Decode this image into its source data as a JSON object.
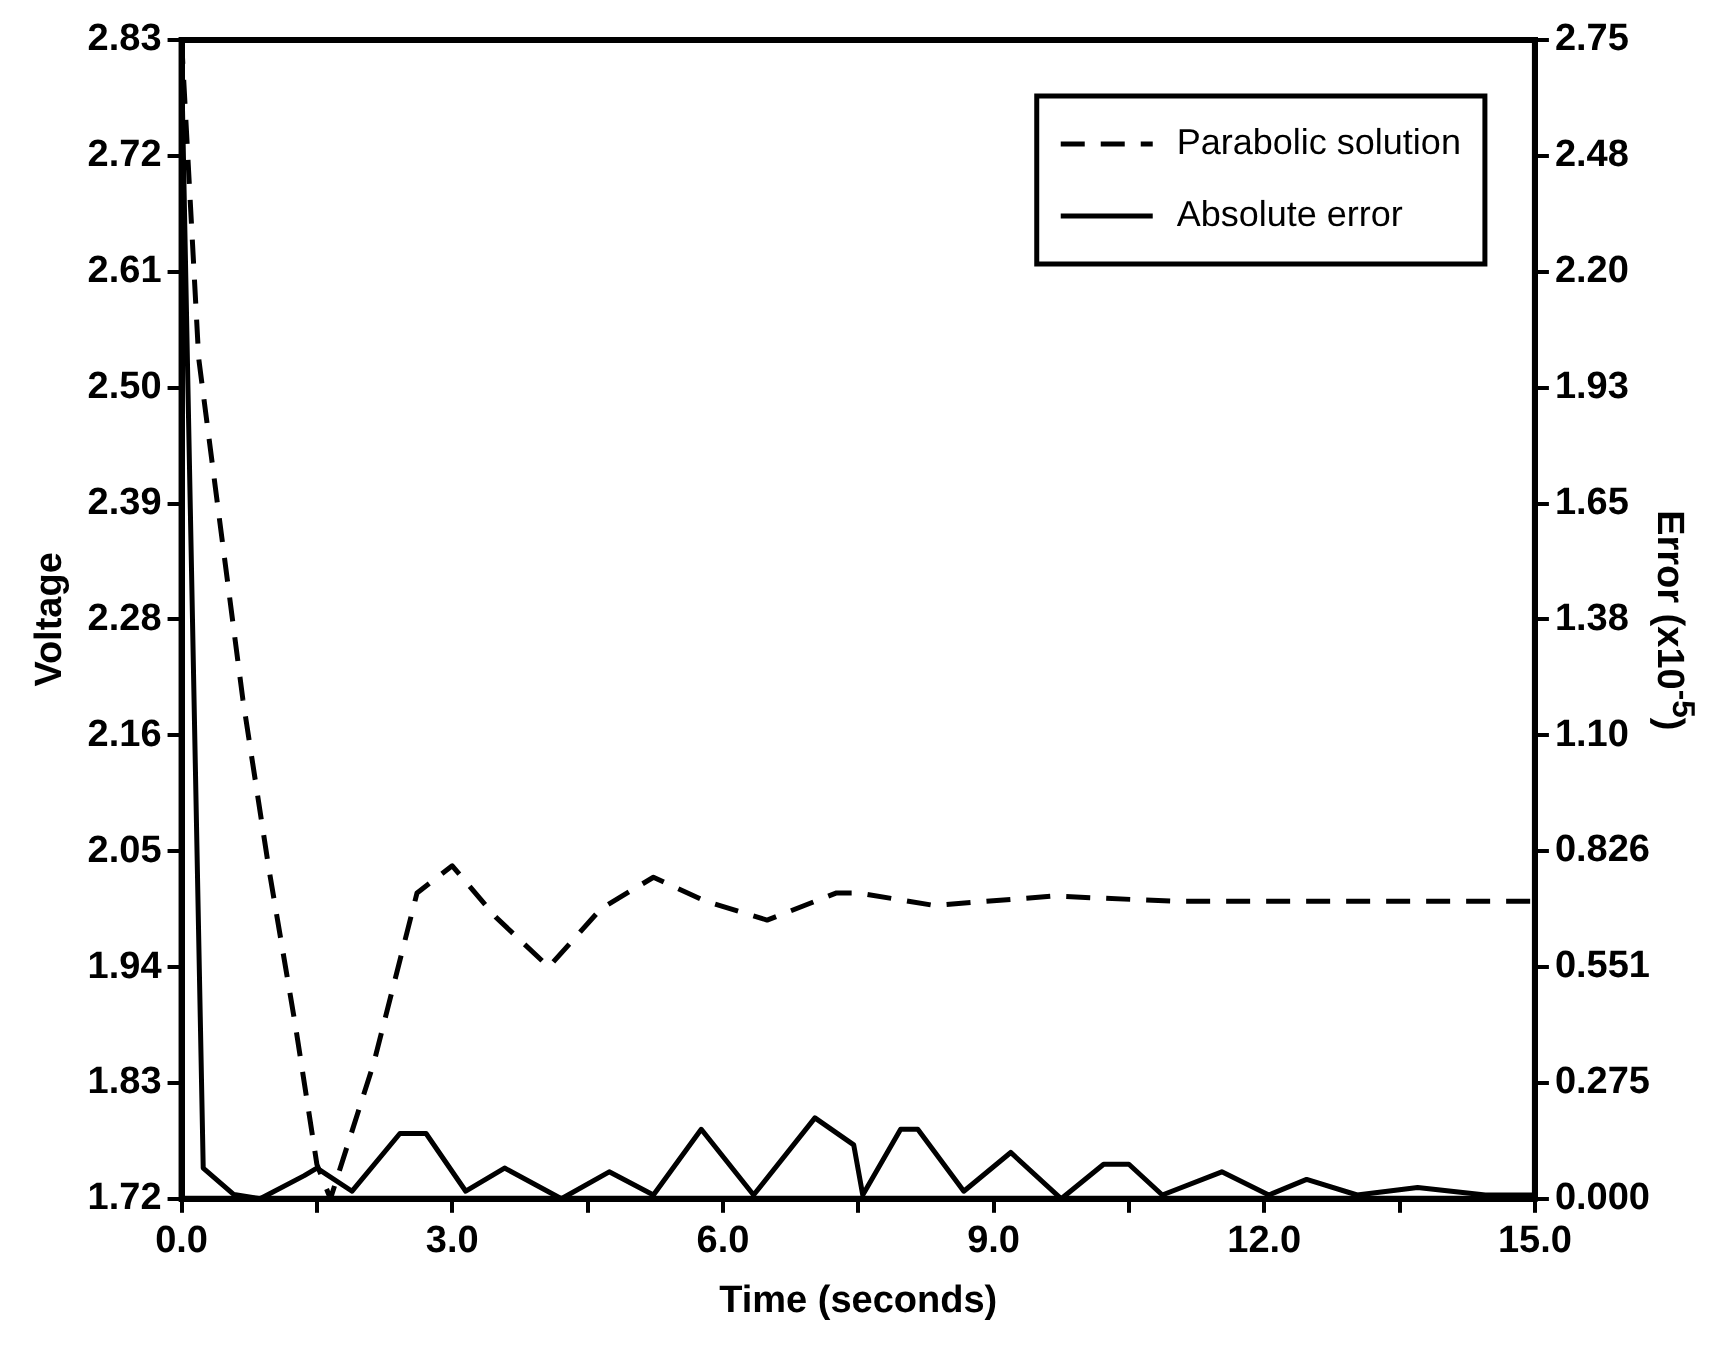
{
  "chart_data": {
    "type": "line",
    "xlabel": "Time (seconds)",
    "ylabel": "Voltage",
    "y2label": "Error (x10$^{-5}$)",
    "legend": "top right",
    "grid": false,
    "marker": "none",
    "xlim": [
      0,
      15
    ],
    "xticks": [
      {
        "value": 0,
        "label": "0.0"
      },
      {
        "value": 1.5,
        "label": null
      },
      {
        "value": 3,
        "label": "3.0"
      },
      {
        "value": 4.5,
        "label": null
      },
      {
        "value": 6,
        "label": "6.0"
      },
      {
        "value": 7.5,
        "label": null
      },
      {
        "value": 9,
        "label": "9.0"
      },
      {
        "value": 10.5,
        "label": null
      },
      {
        "value": 12,
        "label": "12.0"
      },
      {
        "value": 13.5,
        "label": null
      },
      {
        "value": 15,
        "label": "15.0"
      }
    ],
    "ylim": [
      1.72,
      2.83
    ],
    "yticks": [
      {
        "value": 1.72,
        "label": "1.72"
      },
      {
        "value": 1.831,
        "label": "1.83"
      },
      {
        "value": 1.942,
        "label": "1.94"
      },
      {
        "value": 2.053,
        "label": "2.05"
      },
      {
        "value": 2.164,
        "label": "2.16"
      },
      {
        "value": 2.275,
        "label": "2.28"
      },
      {
        "value": 2.386,
        "label": "2.39"
      },
      {
        "value": 2.497,
        "label": "2.50"
      },
      {
        "value": 2.608,
        "label": "2.61"
      },
      {
        "value": 2.719,
        "label": "2.72"
      },
      {
        "value": 2.83,
        "label": "2.83"
      }
    ],
    "y2lim": [
      0,
      2.75
    ],
    "y2ticks": [
      {
        "value": 0,
        "label": "0.000"
      },
      {
        "value": 0.275,
        "label": "0.275"
      },
      {
        "value": 0.551,
        "label": "0.551"
      },
      {
        "value": 0.826,
        "label": "0.826"
      },
      {
        "value": 1.1,
        "label": "1.10"
      },
      {
        "value": 1.375,
        "label": "1.38"
      },
      {
        "value": 1.65,
        "label": "1.65"
      },
      {
        "value": 1.925,
        "label": "1.93"
      },
      {
        "value": 2.2,
        "label": "2.20"
      },
      {
        "value": 2.475,
        "label": "2.48"
      },
      {
        "value": 2.75,
        "label": "2.75"
      }
    ],
    "series": [
      {
        "name": "Parabolic solution",
        "color": "#000000",
        "line_style": "dashed",
        "x": [
          0,
          0.19,
          0.39,
          0.68,
          0.97,
          1.26,
          1.5,
          1.65,
          2.13,
          2.61,
          3.0,
          3.48,
          4.07,
          4.65,
          5.23,
          5.81,
          6.49,
          7.26,
          7.5,
          8.34,
          9.66,
          11.0,
          12.5,
          15.0
        ],
        "values": [
          2.83,
          2.525,
          2.391,
          2.198,
          2.035,
          1.887,
          1.753,
          1.72,
          1.85,
          2.013,
          2.039,
          1.99,
          1.942,
          1.998,
          2.028,
          2.005,
          1.987,
          2.013,
          2.013,
          2.001,
          2.01,
          2.005,
          2.005,
          2.005
        ]
      },
      {
        "name": "Absolute error",
        "color": "#000000",
        "line_style": "solid",
        "axis": "y2",
        "x": [
          0,
          0.24,
          0.58,
          0.87,
          1.36,
          1.5,
          1.89,
          2.42,
          2.71,
          3.15,
          3.58,
          4.21,
          4.74,
          5.23,
          5.76,
          6.34,
          7.02,
          7.45,
          7.55,
          7.97,
          8.16,
          8.67,
          9.19,
          9.75,
          10.22,
          10.5,
          10.87,
          11.53,
          12.05,
          12.47,
          13.03,
          13.7,
          14.45,
          15.0
        ],
        "values": [
          2.7,
          0.073,
          0.01,
          0,
          0.055,
          0.073,
          0.018,
          0.155,
          0.155,
          0.018,
          0.073,
          0,
          0.064,
          0.009,
          0.165,
          0.009,
          0.192,
          0.128,
          0.009,
          0.165,
          0.165,
          0.018,
          0.11,
          0,
          0.082,
          0.082,
          0.009,
          0.064,
          0.009,
          0.046,
          0.009,
          0.027,
          0.009,
          0.009
        ]
      }
    ]
  }
}
